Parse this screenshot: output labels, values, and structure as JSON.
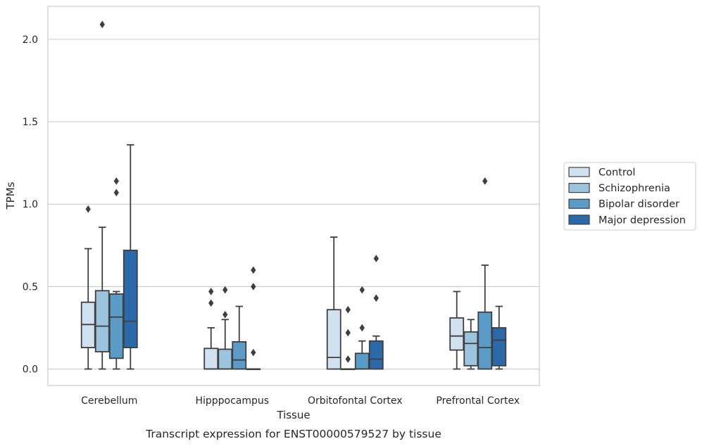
{
  "chart_data": {
    "type": "box",
    "xlabel": "Tissue",
    "ylabel": "TPMs",
    "ylim": [
      -0.1,
      2.2
    ],
    "yticks": [
      "0.0",
      "0.5",
      "1.0",
      "1.5",
      "2.0"
    ],
    "ytick_values": [
      0.0,
      0.5,
      1.0,
      1.5,
      2.0
    ],
    "grid": "horizontal",
    "legend_position": "right",
    "categories": [
      "Cerebellum",
      "Hipppocampus",
      "Orbitofontal Cortex",
      "Prefrontal Cortex"
    ],
    "series": [
      {
        "name": "Control",
        "color": "#d1e1f0",
        "boxes": [
          {
            "whislo": 0.0,
            "q1": 0.13,
            "med": 0.27,
            "q3": 0.405,
            "whishi": 0.73,
            "fliers": [
              0.97
            ]
          },
          {
            "whislo": 0.0,
            "q1": 0.0,
            "med": 0.0,
            "q3": 0.125,
            "whishi": 0.25,
            "fliers": [
              0.4,
              0.47
            ]
          },
          {
            "whislo": 0.0,
            "q1": 0.0,
            "med": 0.07,
            "q3": 0.36,
            "whishi": 0.8,
            "fliers": []
          },
          {
            "whislo": 0.0,
            "q1": 0.115,
            "med": 0.2,
            "q3": 0.31,
            "whishi": 0.47,
            "fliers": []
          }
        ]
      },
      {
        "name": "Schizophrenia",
        "color": "#9cc4de",
        "boxes": [
          {
            "whislo": 0.0,
            "q1": 0.105,
            "med": 0.26,
            "q3": 0.475,
            "whishi": 0.86,
            "fliers": [
              2.09
            ]
          },
          {
            "whislo": 0.0,
            "q1": 0.0,
            "med": 0.0,
            "q3": 0.12,
            "whishi": 0.3,
            "fliers": [
              0.33,
              0.48
            ]
          },
          {
            "whislo": 0.0,
            "q1": 0.0,
            "med": 0.0,
            "q3": 0.0,
            "whishi": 0.0,
            "fliers": [
              0.06,
              0.22,
              0.36
            ]
          },
          {
            "whislo": 0.0,
            "q1": 0.02,
            "med": 0.155,
            "q3": 0.225,
            "whishi": 0.3,
            "fliers": []
          }
        ]
      },
      {
        "name": "Bipolar disorder",
        "color": "#5a9bc8",
        "boxes": [
          {
            "whislo": 0.0,
            "q1": 0.065,
            "med": 0.315,
            "q3": 0.455,
            "whishi": 0.47,
            "fliers": [
              1.07,
              1.14
            ]
          },
          {
            "whislo": 0.0,
            "q1": 0.0,
            "med": 0.055,
            "q3": 0.165,
            "whishi": 0.38,
            "fliers": []
          },
          {
            "whislo": 0.0,
            "q1": 0.0,
            "med": 0.0,
            "q3": 0.095,
            "whishi": 0.17,
            "fliers": [
              0.25,
              0.48
            ]
          },
          {
            "whislo": 0.0,
            "q1": 0.0,
            "med": 0.13,
            "q3": 0.345,
            "whishi": 0.63,
            "fliers": [
              1.14
            ]
          }
        ]
      },
      {
        "name": "Major depression",
        "color": "#2b6aa8",
        "boxes": [
          {
            "whislo": 0.0,
            "q1": 0.13,
            "med": 0.29,
            "q3": 0.72,
            "whishi": 1.36,
            "fliers": []
          },
          {
            "whislo": 0.0,
            "q1": 0.0,
            "med": 0.0,
            "q3": 0.0,
            "whishi": 0.0,
            "fliers": [
              0.1,
              0.5,
              0.6
            ]
          },
          {
            "whislo": 0.0,
            "q1": 0.0,
            "med": 0.06,
            "q3": 0.17,
            "whishi": 0.2,
            "fliers": [
              0.43,
              0.67
            ]
          },
          {
            "whislo": 0.0,
            "q1": 0.02,
            "med": 0.175,
            "q3": 0.25,
            "whishi": 0.38,
            "fliers": []
          }
        ]
      }
    ],
    "caption": "Transcript expression for ENST00000579527 by tissue"
  }
}
